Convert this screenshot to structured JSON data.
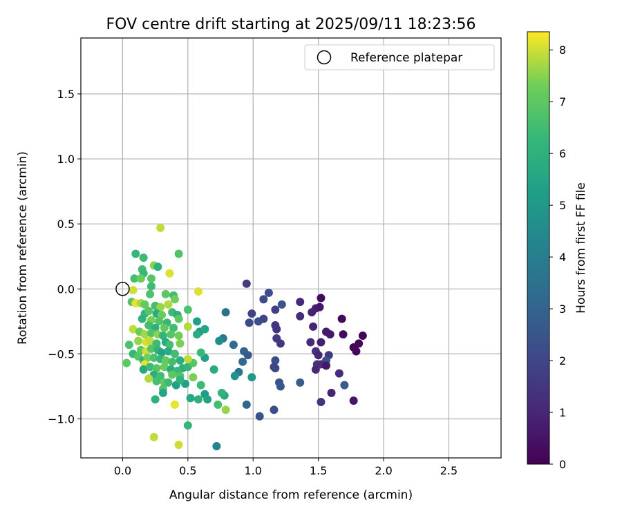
{
  "chart_data": {
    "type": "scatter",
    "title": "FOV centre drift starting at 2025/09/11 18:23:56",
    "xlabel": "Angular distance from reference (arcmin)",
    "ylabel": "Rotation from reference (arcmin)",
    "xlim": [
      -0.32,
      2.9
    ],
    "ylim": [
      -1.3,
      1.93
    ],
    "xticks": [
      0.0,
      0.5,
      1.0,
      1.5,
      2.0,
      2.5
    ],
    "yticks": [
      -1.0,
      -0.5,
      0.0,
      0.5,
      1.0,
      1.5
    ],
    "xtick_labels": [
      "0.0",
      "0.5",
      "1.0",
      "1.5",
      "2.0",
      "2.5"
    ],
    "ytick_labels": [
      "−1.0",
      "−0.5",
      "0.0",
      "0.5",
      "1.0",
      "1.5"
    ],
    "grid": true,
    "colormap": "viridis",
    "colorbar": {
      "label": "Hours from first FF file",
      "range": [
        0,
        8.35
      ],
      "ticks": [
        0,
        1,
        2,
        3,
        4,
        5,
        6,
        7,
        8
      ],
      "tick_labels": [
        "0",
        "1",
        "2",
        "3",
        "4",
        "5",
        "6",
        "7",
        "8"
      ]
    },
    "legend": {
      "placement": "top-right",
      "entries": [
        {
          "label": "Reference platepar",
          "marker": "open-circle"
        }
      ]
    },
    "reference_point": {
      "x": 0.0,
      "y": 0.0
    },
    "points": [
      {
        "x": 1.52,
        "y": -0.07,
        "t": 0.3
      },
      {
        "x": 1.48,
        "y": -0.15,
        "t": 0.8
      },
      {
        "x": 1.51,
        "y": -0.14,
        "t": 0.6
      },
      {
        "x": 1.36,
        "y": -0.1,
        "t": 1.1
      },
      {
        "x": 1.45,
        "y": -0.18,
        "t": 0.9
      },
      {
        "x": 1.36,
        "y": -0.21,
        "t": 1.2
      },
      {
        "x": 1.68,
        "y": -0.23,
        "t": 0.2
      },
      {
        "x": 1.46,
        "y": -0.29,
        "t": 0.9
      },
      {
        "x": 1.56,
        "y": -0.33,
        "t": 0.7
      },
      {
        "x": 1.59,
        "y": -0.35,
        "t": 0.6
      },
      {
        "x": 1.69,
        "y": -0.35,
        "t": 0.3
      },
      {
        "x": 1.84,
        "y": -0.36,
        "t": 0.1
      },
      {
        "x": 1.44,
        "y": -0.41,
        "t": 1.1
      },
      {
        "x": 1.52,
        "y": -0.41,
        "t": 0.8
      },
      {
        "x": 1.81,
        "y": -0.42,
        "t": 0.2
      },
      {
        "x": 1.77,
        "y": -0.45,
        "t": 0.1
      },
      {
        "x": 1.79,
        "y": -0.48,
        "t": 0.2
      },
      {
        "x": 1.48,
        "y": -0.48,
        "t": 1.4
      },
      {
        "x": 1.5,
        "y": -0.51,
        "t": 1.0
      },
      {
        "x": 1.58,
        "y": -0.51,
        "t": 1.6
      },
      {
        "x": 1.56,
        "y": -0.55,
        "t": 2.3
      },
      {
        "x": 1.49,
        "y": -0.58,
        "t": 1.3
      },
      {
        "x": 1.52,
        "y": -0.58,
        "t": 1.2
      },
      {
        "x": 1.56,
        "y": -0.59,
        "t": 0.6
      },
      {
        "x": 1.48,
        "y": -0.62,
        "t": 1.0
      },
      {
        "x": 1.66,
        "y": -0.65,
        "t": 1.1
      },
      {
        "x": 1.7,
        "y": -0.74,
        "t": 2.7
      },
      {
        "x": 1.6,
        "y": -0.8,
        "t": 0.9
      },
      {
        "x": 1.52,
        "y": -0.87,
        "t": 1.4
      },
      {
        "x": 1.77,
        "y": -0.86,
        "t": 0.6
      },
      {
        "x": 0.95,
        "y": 0.04,
        "t": 1.6
      },
      {
        "x": 1.12,
        "y": -0.03,
        "t": 2.2
      },
      {
        "x": 1.08,
        "y": -0.08,
        "t": 2.1
      },
      {
        "x": 1.17,
        "y": -0.16,
        "t": 1.8
      },
      {
        "x": 1.22,
        "y": -0.12,
        "t": 2.5
      },
      {
        "x": 0.99,
        "y": -0.19,
        "t": 1.9
      },
      {
        "x": 0.97,
        "y": -0.26,
        "t": 2.1
      },
      {
        "x": 1.04,
        "y": -0.25,
        "t": 2.3
      },
      {
        "x": 1.08,
        "y": -0.23,
        "t": 2.0
      },
      {
        "x": 1.17,
        "y": -0.28,
        "t": 1.5
      },
      {
        "x": 1.18,
        "y": -0.31,
        "t": 1.4
      },
      {
        "x": 1.18,
        "y": -0.38,
        "t": 1.6
      },
      {
        "x": 1.21,
        "y": -0.42,
        "t": 1.5
      },
      {
        "x": 1.17,
        "y": -0.55,
        "t": 2.3
      },
      {
        "x": 1.16,
        "y": -0.6,
        "t": 1.9
      },
      {
        "x": 1.17,
        "y": -0.61,
        "t": 2.0
      },
      {
        "x": 1.2,
        "y": -0.72,
        "t": 2.4
      },
      {
        "x": 1.21,
        "y": -0.75,
        "t": 2.6
      },
      {
        "x": 1.36,
        "y": -0.72,
        "t": 2.8
      },
      {
        "x": 1.16,
        "y": -0.93,
        "t": 2.2
      },
      {
        "x": 1.05,
        "y": -0.98,
        "t": 2.4
      },
      {
        "x": 0.95,
        "y": -0.89,
        "t": 3.1
      },
      {
        "x": 0.79,
        "y": -0.18,
        "t": 3.5
      },
      {
        "x": 0.85,
        "y": -0.43,
        "t": 3.3
      },
      {
        "x": 0.77,
        "y": -0.38,
        "t": 3.8
      },
      {
        "x": 0.74,
        "y": -0.4,
        "t": 4.6
      },
      {
        "x": 0.93,
        "y": -0.48,
        "t": 3.0
      },
      {
        "x": 0.96,
        "y": -0.51,
        "t": 2.7
      },
      {
        "x": 0.92,
        "y": -0.56,
        "t": 3.2
      },
      {
        "x": 0.89,
        "y": -0.64,
        "t": 3.6
      },
      {
        "x": 0.86,
        "y": -0.67,
        "t": 4.8
      },
      {
        "x": 0.99,
        "y": -0.68,
        "t": 5.0
      },
      {
        "x": 0.72,
        "y": -1.21,
        "t": 4.2
      },
      {
        "x": 0.57,
        "y": -0.25,
        "t": 5.3
      },
      {
        "x": 0.59,
        "y": -0.33,
        "t": 5.1
      },
      {
        "x": 0.63,
        "y": -0.31,
        "t": 5.5
      },
      {
        "x": 0.57,
        "y": -0.35,
        "t": 5.8
      },
      {
        "x": 0.63,
        "y": -0.53,
        "t": 5.4
      },
      {
        "x": 0.7,
        "y": -0.62,
        "t": 5.7
      },
      {
        "x": 0.78,
        "y": -0.82,
        "t": 5.6
      },
      {
        "x": 0.76,
        "y": -0.8,
        "t": 6.1
      },
      {
        "x": 0.63,
        "y": -0.81,
        "t": 5.2
      },
      {
        "x": 0.65,
        "y": -0.85,
        "t": 5.4
      },
      {
        "x": 0.73,
        "y": -0.89,
        "t": 6.6
      },
      {
        "x": 0.79,
        "y": -0.93,
        "t": 7.6
      },
      {
        "x": 0.58,
        "y": -0.85,
        "t": 6.0
      },
      {
        "x": 0.52,
        "y": -0.84,
        "t": 5.6
      },
      {
        "x": 0.6,
        "y": -0.74,
        "t": 6.4
      },
      {
        "x": 0.48,
        "y": -0.73,
        "t": 5.3
      },
      {
        "x": 0.46,
        "y": -0.61,
        "t": 5.9
      },
      {
        "x": 0.5,
        "y": -0.6,
        "t": 6.2
      },
      {
        "x": 0.6,
        "y": -0.49,
        "t": 6.3
      },
      {
        "x": 0.54,
        "y": -0.57,
        "t": 6.9
      },
      {
        "x": 0.54,
        "y": -0.68,
        "t": 7.4
      },
      {
        "x": 0.5,
        "y": -0.16,
        "t": 6.7
      },
      {
        "x": 0.5,
        "y": -0.29,
        "t": 7.8
      },
      {
        "x": 0.58,
        "y": -0.02,
        "t": 8.1
      },
      {
        "x": 0.5,
        "y": -0.54,
        "t": 7.9
      },
      {
        "x": 0.4,
        "y": -0.89,
        "t": 8.2
      },
      {
        "x": 0.43,
        "y": -1.2,
        "t": 8.0
      },
      {
        "x": 0.24,
        "y": -1.14,
        "t": 7.9
      },
      {
        "x": 0.5,
        "y": -1.05,
        "t": 6.2
      },
      {
        "x": 0.29,
        "y": 0.47,
        "t": 7.9
      },
      {
        "x": 0.43,
        "y": 0.27,
        "t": 6.7
      },
      {
        "x": 0.24,
        "y": 0.18,
        "t": 7.5
      },
      {
        "x": 0.27,
        "y": 0.17,
        "t": 6.0
      },
      {
        "x": 0.36,
        "y": 0.12,
        "t": 8.1
      },
      {
        "x": 0.1,
        "y": 0.27,
        "t": 6.2
      },
      {
        "x": 0.16,
        "y": 0.24,
        "t": 6.4
      },
      {
        "x": 0.15,
        "y": 0.15,
        "t": 6.5
      },
      {
        "x": 0.16,
        "y": 0.12,
        "t": 6.3
      },
      {
        "x": 0.09,
        "y": 0.08,
        "t": 6.6
      },
      {
        "x": 0.14,
        "y": 0.08,
        "t": 7.2
      },
      {
        "x": 0.22,
        "y": 0.08,
        "t": 6.9
      },
      {
        "x": 0.22,
        "y": 0.02,
        "t": 6.4
      },
      {
        "x": 0.08,
        "y": -0.01,
        "t": 8.0
      },
      {
        "x": 0.21,
        "y": -0.04,
        "t": 6.7
      },
      {
        "x": 0.33,
        "y": -0.04,
        "t": 7.0
      },
      {
        "x": 0.39,
        "y": -0.05,
        "t": 6.5
      },
      {
        "x": 0.4,
        "y": -0.08,
        "t": 7.3
      },
      {
        "x": 0.07,
        "y": -0.1,
        "t": 6.8
      },
      {
        "x": 0.1,
        "y": -0.11,
        "t": 8.2
      },
      {
        "x": 0.14,
        "y": -0.11,
        "t": 7.7
      },
      {
        "x": 0.17,
        "y": -0.12,
        "t": 7.1
      },
      {
        "x": 0.25,
        "y": -0.13,
        "t": 6.6
      },
      {
        "x": 0.29,
        "y": -0.14,
        "t": 7.6
      },
      {
        "x": 0.35,
        "y": -0.12,
        "t": 7.8
      },
      {
        "x": 0.17,
        "y": -0.19,
        "t": 6.2
      },
      {
        "x": 0.2,
        "y": -0.17,
        "t": 6.9
      },
      {
        "x": 0.26,
        "y": -0.19,
        "t": 5.8
      },
      {
        "x": 0.3,
        "y": -0.2,
        "t": 7.2
      },
      {
        "x": 0.38,
        "y": -0.18,
        "t": 6.4
      },
      {
        "x": 0.42,
        "y": -0.2,
        "t": 5.9
      },
      {
        "x": 0.15,
        "y": -0.23,
        "t": 6.1
      },
      {
        "x": 0.22,
        "y": -0.24,
        "t": 7.4
      },
      {
        "x": 0.28,
        "y": -0.25,
        "t": 6.8
      },
      {
        "x": 0.34,
        "y": -0.26,
        "t": 6.3
      },
      {
        "x": 0.43,
        "y": -0.23,
        "t": 7.0
      },
      {
        "x": 0.2,
        "y": -0.28,
        "t": 6.6
      },
      {
        "x": 0.25,
        "y": -0.3,
        "t": 5.9
      },
      {
        "x": 0.32,
        "y": -0.3,
        "t": 7.1
      },
      {
        "x": 0.39,
        "y": -0.3,
        "t": 6.5
      },
      {
        "x": 0.08,
        "y": -0.31,
        "t": 7.9
      },
      {
        "x": 0.13,
        "y": -0.33,
        "t": 7.2
      },
      {
        "x": 0.17,
        "y": -0.35,
        "t": 7.7
      },
      {
        "x": 0.22,
        "y": -0.34,
        "t": 6.8
      },
      {
        "x": 0.27,
        "y": -0.35,
        "t": 7.5
      },
      {
        "x": 0.31,
        "y": -0.36,
        "t": 6.2
      },
      {
        "x": 0.37,
        "y": -0.35,
        "t": 6.9
      },
      {
        "x": 0.43,
        "y": -0.36,
        "t": 7.3
      },
      {
        "x": 0.05,
        "y": -0.43,
        "t": 6.7
      },
      {
        "x": 0.12,
        "y": -0.4,
        "t": 7.6
      },
      {
        "x": 0.18,
        "y": -0.41,
        "t": 8.1
      },
      {
        "x": 0.21,
        "y": -0.4,
        "t": 7.9
      },
      {
        "x": 0.26,
        "y": -0.42,
        "t": 6.4
      },
      {
        "x": 0.33,
        "y": -0.41,
        "t": 5.7
      },
      {
        "x": 0.36,
        "y": -0.43,
        "t": 6.6
      },
      {
        "x": 0.44,
        "y": -0.42,
        "t": 7.4
      },
      {
        "x": 0.08,
        "y": -0.5,
        "t": 6.3
      },
      {
        "x": 0.14,
        "y": -0.47,
        "t": 7.0
      },
      {
        "x": 0.18,
        "y": -0.48,
        "t": 8.0
      },
      {
        "x": 0.22,
        "y": -0.46,
        "t": 6.8
      },
      {
        "x": 0.27,
        "y": -0.47,
        "t": 6.1
      },
      {
        "x": 0.3,
        "y": -0.49,
        "t": 5.4
      },
      {
        "x": 0.35,
        "y": -0.48,
        "t": 5.8
      },
      {
        "x": 0.4,
        "y": -0.5,
        "t": 6.5
      },
      {
        "x": 0.12,
        "y": -0.52,
        "t": 6.9
      },
      {
        "x": 0.16,
        "y": -0.55,
        "t": 6.0
      },
      {
        "x": 0.19,
        "y": -0.53,
        "t": 7.3
      },
      {
        "x": 0.24,
        "y": -0.53,
        "t": 6.7
      },
      {
        "x": 0.29,
        "y": -0.54,
        "t": 6.2
      },
      {
        "x": 0.33,
        "y": -0.55,
        "t": 7.1
      },
      {
        "x": 0.38,
        "y": -0.56,
        "t": 6.6
      },
      {
        "x": 0.44,
        "y": -0.55,
        "t": 5.9
      },
      {
        "x": 0.03,
        "y": -0.57,
        "t": 7.0
      },
      {
        "x": 0.17,
        "y": -0.58,
        "t": 8.2
      },
      {
        "x": 0.16,
        "y": -0.62,
        "t": 5.6
      },
      {
        "x": 0.21,
        "y": -0.6,
        "t": 6.4
      },
      {
        "x": 0.26,
        "y": -0.61,
        "t": 6.9
      },
      {
        "x": 0.32,
        "y": -0.6,
        "t": 7.2
      },
      {
        "x": 0.37,
        "y": -0.62,
        "t": 5.8
      },
      {
        "x": 0.42,
        "y": -0.63,
        "t": 6.3
      },
      {
        "x": 0.24,
        "y": -0.66,
        "t": 5.9
      },
      {
        "x": 0.29,
        "y": -0.67,
        "t": 6.5
      },
      {
        "x": 0.38,
        "y": -0.66,
        "t": 7.0
      },
      {
        "x": 0.44,
        "y": -0.67,
        "t": 6.8
      },
      {
        "x": 0.2,
        "y": -0.69,
        "t": 7.8
      },
      {
        "x": 0.26,
        "y": -0.71,
        "t": 6.6
      },
      {
        "x": 0.32,
        "y": -0.72,
        "t": 7.1
      },
      {
        "x": 0.35,
        "y": -0.72,
        "t": 6.4
      },
      {
        "x": 0.41,
        "y": -0.74,
        "t": 5.3
      },
      {
        "x": 0.44,
        "y": -0.7,
        "t": 6.1
      },
      {
        "x": 0.31,
        "y": -0.77,
        "t": 6.8
      },
      {
        "x": 0.31,
        "y": -0.8,
        "t": 5.5
      },
      {
        "x": 0.25,
        "y": -0.85,
        "t": 6.0
      }
    ]
  }
}
